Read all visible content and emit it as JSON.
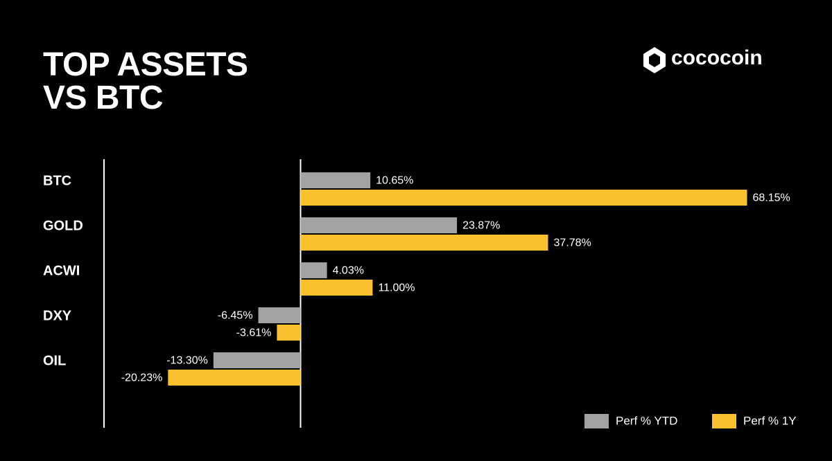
{
  "brand": "cococoin",
  "chart_data": {
    "type": "hbar",
    "title": "TOP ASSETS VS BTC",
    "categories": [
      "BTC",
      "GOLD",
      "ACWI",
      "DXY",
      "OIL"
    ],
    "series": [
      {
        "name": "Perf % YTD",
        "color": "#a3a3a3",
        "values": [
          10.65,
          23.87,
          4.03,
          -6.45,
          -13.3
        ],
        "value_labels": [
          "10.65%",
          "23.87%",
          "4.03%",
          "-6.45%",
          "-13.30%"
        ]
      },
      {
        "name": "Perf % 1Y",
        "color": "#fbc02d",
        "values": [
          68.15,
          37.78,
          11.0,
          -3.61,
          -20.23
        ],
        "value_labels": [
          "68.15%",
          "37.78%",
          "11.00%",
          "-3.61%",
          "-20.23%"
        ]
      }
    ],
    "xlim": [
      -30,
      70
    ],
    "legend": "bottom-right"
  }
}
